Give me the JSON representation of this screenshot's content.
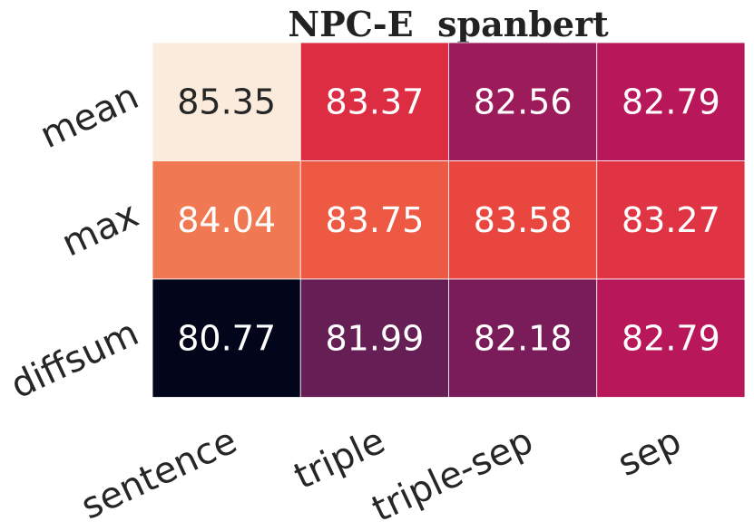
{
  "chart_data": {
    "type": "heatmap",
    "title": "NPC-E  spanbert",
    "xlabel": "",
    "ylabel": "",
    "x_categories": [
      "sentence",
      "triple",
      "triple-sep",
      "sep"
    ],
    "y_categories": [
      "mean",
      "max",
      "diffsum"
    ],
    "values": [
      [
        85.35,
        83.37,
        82.56,
        82.79
      ],
      [
        84.04,
        83.75,
        83.58,
        83.27
      ],
      [
        80.77,
        81.99,
        82.18,
        82.79
      ]
    ],
    "colors": [
      [
        "#fbebdd",
        "#dd2d43",
        "#9c1b5a",
        "#b8185a"
      ],
      [
        "#f07852",
        "#ed5942",
        "#e8463f",
        "#e03445"
      ],
      [
        "#03051a",
        "#661f54",
        "#7b1c5a",
        "#b8185a"
      ]
    ],
    "colorbar": false,
    "grid": false
  }
}
